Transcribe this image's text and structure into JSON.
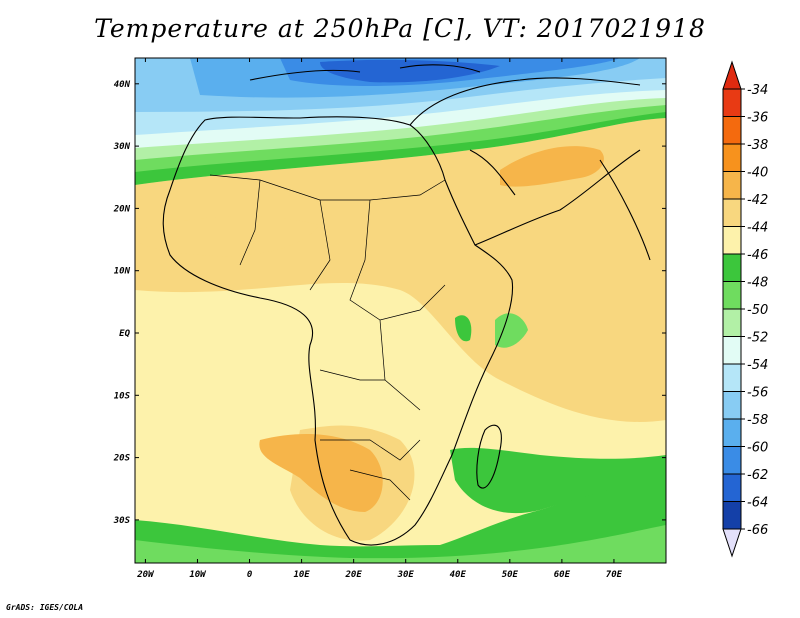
{
  "title": "Temperature at 250hPa [C], VT: 2017021918",
  "credit": "GrADS: IGES/COLA",
  "latitude_labels": [
    {
      "label": "40N",
      "lat": 40
    },
    {
      "label": "30N",
      "lat": 30
    },
    {
      "label": "20N",
      "lat": 20
    },
    {
      "label": "10N",
      "lat": 10
    },
    {
      "label": "EQ",
      "lat": 0
    },
    {
      "label": "10S",
      "lat": -10
    },
    {
      "label": "20S",
      "lat": -20
    },
    {
      "label": "30S",
      "lat": -30
    }
  ],
  "longitude_labels": [
    {
      "label": "20W",
      "lon": -20
    },
    {
      "label": "10W",
      "lon": -10
    },
    {
      "label": "0",
      "lon": 0
    },
    {
      "label": "10E",
      "lon": 10
    },
    {
      "label": "20E",
      "lon": 20
    },
    {
      "label": "30E",
      "lon": 30
    },
    {
      "label": "40E",
      "lon": 40
    },
    {
      "label": "50E",
      "lon": 50
    },
    {
      "label": "60E",
      "lon": 60
    },
    {
      "label": "70E",
      "lon": 70
    }
  ],
  "colorbar": {
    "levels": [
      {
        "label": "-34",
        "color": "#e83a14"
      },
      {
        "label": "-36",
        "color": "#f46a0e"
      },
      {
        "label": "-38",
        "color": "#f7921d"
      },
      {
        "label": "-40",
        "color": "#f6b54a"
      },
      {
        "label": "-42",
        "color": "#f8d77f"
      },
      {
        "label": "-44",
        "color": "#fdf2ab"
      },
      {
        "label": "-46",
        "color": "#3cc63c"
      },
      {
        "label": "-48",
        "color": "#6fdc5f"
      },
      {
        "label": "-50",
        "color": "#b2f0a6"
      },
      {
        "label": "-52",
        "color": "#e2fcf5"
      },
      {
        "label": "-54",
        "color": "#b5e6f8"
      },
      {
        "label": "-56",
        "color": "#88ccf3"
      },
      {
        "label": "-58",
        "color": "#5aafee"
      },
      {
        "label": "-60",
        "color": "#3a8ce6"
      },
      {
        "label": "-62",
        "color": "#2465d3"
      },
      {
        "label": "-64",
        "color": "#1440a8"
      },
      {
        "label": "-66",
        "color": "#0b1c78"
      }
    ],
    "top_cap_color": "#e02a10",
    "bottom_cap_color": "#e3e0fa"
  }
}
